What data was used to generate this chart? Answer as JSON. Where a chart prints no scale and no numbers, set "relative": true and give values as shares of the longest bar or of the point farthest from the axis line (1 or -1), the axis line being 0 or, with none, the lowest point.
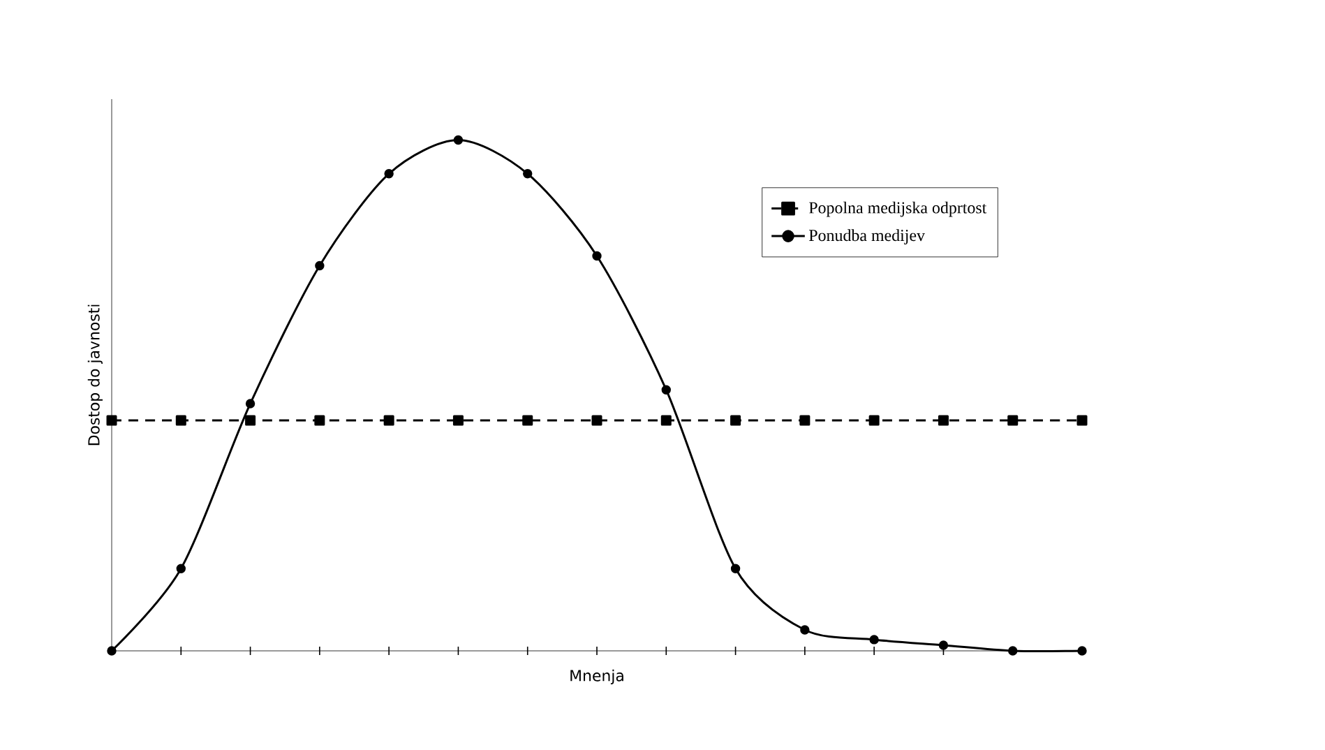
{
  "chart_data": {
    "type": "line",
    "xlabel": "Mnenja",
    "ylabel": "Dostop do javnosti",
    "relative": true,
    "legend": "top right",
    "grid": false,
    "categories": [
      null,
      null,
      null,
      null,
      null,
      null,
      null,
      null,
      null,
      null,
      null,
      null,
      null,
      null,
      null
    ],
    "series": [
      {
        "name": "Popolna medijska odprtost",
        "color": "#000000",
        "line_style": "dashed",
        "marker": "square",
        "values": [
          0.451,
          0.451,
          0.451,
          0.451,
          0.451,
          0.451,
          0.451,
          0.451,
          0.451,
          0.451,
          0.451,
          0.451,
          0.451,
          0.451,
          0.451
        ]
      },
      {
        "name": "Ponudba medijev",
        "color": "#000000",
        "line_style": "solid",
        "marker": "circle",
        "values": [
          0,
          0.161,
          0.484,
          0.754,
          0.934,
          1,
          0.934,
          0.773,
          0.511,
          0.161,
          0.041,
          0.022,
          0.011,
          0,
          0
        ]
      }
    ]
  }
}
